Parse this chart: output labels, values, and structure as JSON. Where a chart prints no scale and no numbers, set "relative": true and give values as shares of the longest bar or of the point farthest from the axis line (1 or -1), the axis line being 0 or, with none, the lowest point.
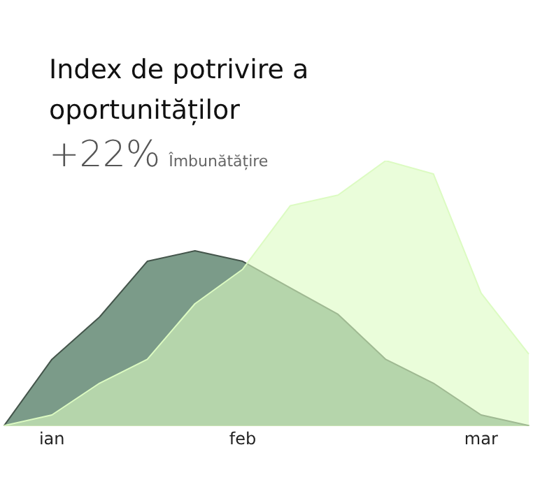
{
  "chart_data": {
    "type": "area",
    "title": "Index de potrivire a oportunităților",
    "subtitle": "+22%",
    "annotations": [
      "Îmbunătățire"
    ],
    "relative": true,
    "categories": [
      null,
      "ian",
      null,
      null,
      null,
      "feb",
      null,
      null,
      null,
      null,
      "mar",
      null
    ],
    "series": [
      {
        "color": "#7b9b89",
        "values": [
          0,
          0.25,
          0.41,
          0.62,
          0.66,
          0.62,
          0.52,
          0.42,
          0.25,
          0.16,
          0.04,
          0
        ]
      },
      {
        "color": "#dcfbc2",
        "values": [
          0,
          0.04,
          0.16,
          0.25,
          0.46,
          0.59,
          0.83,
          0.87,
          1,
          0.95,
          0.5,
          0.27
        ]
      }
    ],
    "grid": false,
    "legend": false
  }
}
